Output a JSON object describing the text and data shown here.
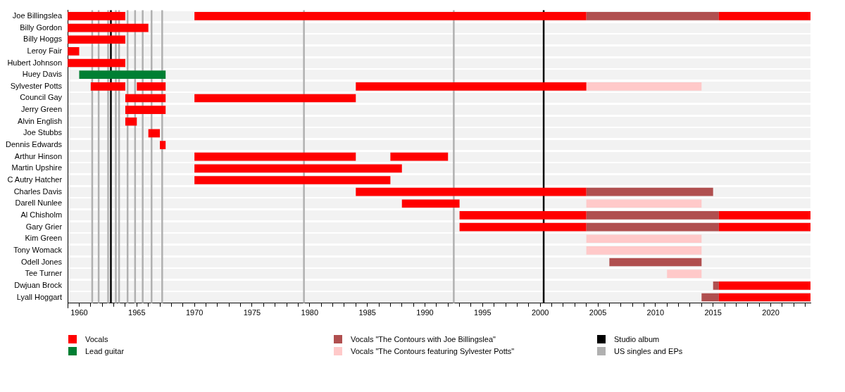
{
  "chart_data": {
    "type": "bar",
    "orientation": "horizontal",
    "grid": "y",
    "legend": "bottom",
    "categories": [
      "Joe Billingslea",
      "Billy Gordon",
      "Billy Hoggs",
      "Leroy Fair",
      "Hubert Johnson",
      "Huey Davis",
      "Sylvester Potts",
      "Council Gay",
      "Jerry Green",
      "Alvin English",
      "Joe Stubbs",
      "Dennis Edwards",
      "Arthur Hinson",
      "Martin Upshire",
      "C Autry Hatcher",
      "Charles Davis",
      "Darell Nunlee",
      "Al Chisholm",
      "Gary Grier",
      "Kim Green",
      "Tony Womack",
      "Odell Jones",
      "Tee Turner",
      "Dwjuan Brock",
      "Lyall Hoggart"
    ],
    "xlim": [
      1959,
      2023.45
    ],
    "xticks": [
      {
        "value": 1959,
        "label": null
      },
      1960,
      {
        "value": 1961,
        "label": null
      },
      {
        "value": 1962,
        "label": null
      },
      {
        "value": 1963,
        "label": null
      },
      {
        "value": 1964,
        "label": null
      },
      1965,
      {
        "value": 1966,
        "label": null
      },
      {
        "value": 1967,
        "label": null
      },
      {
        "value": 1968,
        "label": null
      },
      {
        "value": 1969,
        "label": null
      },
      1970,
      {
        "value": 1971,
        "label": null
      },
      {
        "value": 1972,
        "label": null
      },
      {
        "value": 1973,
        "label": null
      },
      {
        "value": 1974,
        "label": null
      },
      1975,
      {
        "value": 1976,
        "label": null
      },
      {
        "value": 1977,
        "label": null
      },
      {
        "value": 1978,
        "label": null
      },
      {
        "value": 1979,
        "label": null
      },
      1980,
      {
        "value": 1981,
        "label": null
      },
      {
        "value": 1982,
        "label": null
      },
      {
        "value": 1983,
        "label": null
      },
      {
        "value": 1984,
        "label": null
      },
      1985,
      {
        "value": 1986,
        "label": null
      },
      {
        "value": 1987,
        "label": null
      },
      {
        "value": 1988,
        "label": null
      },
      {
        "value": 1989,
        "label": null
      },
      1990,
      {
        "value": 1991,
        "label": null
      },
      {
        "value": 1992,
        "label": null
      },
      {
        "value": 1993,
        "label": null
      },
      {
        "value": 1994,
        "label": null
      },
      1995,
      {
        "value": 1996,
        "label": null
      },
      {
        "value": 1997,
        "label": null
      },
      {
        "value": 1998,
        "label": null
      },
      {
        "value": 1999,
        "label": null
      },
      2000,
      {
        "value": 2001,
        "label": null
      },
      {
        "value": 2002,
        "label": null
      },
      {
        "value": 2003,
        "label": null
      },
      {
        "value": 2004,
        "label": null
      },
      2005,
      {
        "value": 2006,
        "label": null
      },
      {
        "value": 2007,
        "label": null
      },
      {
        "value": 2008,
        "label": null
      },
      {
        "value": 2009,
        "label": null
      },
      2010,
      {
        "value": 2011,
        "label": null
      },
      {
        "value": 2012,
        "label": null
      },
      {
        "value": 2013,
        "label": null
      },
      {
        "value": 2014,
        "label": null
      },
      2015,
      {
        "value": 2016,
        "label": null
      },
      {
        "value": 2017,
        "label": null
      },
      {
        "value": 2018,
        "label": null
      },
      {
        "value": 2019,
        "label": null
      },
      2020,
      {
        "value": 2021,
        "label": null
      },
      {
        "value": 2022,
        "label": null
      },
      {
        "value": 2023,
        "label": null
      }
    ],
    "series": [
      {
        "name": "Vocals",
        "color": "#ff0000",
        "base": [
          1959,
          1959,
          1959,
          1959,
          1959,
          null,
          1961,
          1964,
          1964,
          1964,
          1966,
          1967,
          1970,
          1970,
          1970,
          1984,
          1988,
          1993,
          1993,
          null,
          null,
          null,
          null,
          2015.5,
          2015.5
        ],
        "values": [
          5,
          7,
          5,
          1,
          5,
          null,
          3,
          3.5,
          3.5,
          1,
          1,
          0.5,
          14,
          18,
          17,
          20,
          5,
          11,
          11,
          null,
          null,
          null,
          null,
          7.95,
          7.95
        ]
      },
      {
        "color": "#ff0000",
        "base": [
          1970,
          null,
          null,
          null,
          null,
          null,
          1965,
          1970,
          null,
          null,
          null,
          null,
          1987,
          null,
          null,
          null,
          null,
          2015.5,
          2015.5,
          null,
          null,
          null,
          null,
          null,
          null
        ],
        "values": [
          34,
          null,
          null,
          null,
          null,
          null,
          2.5,
          14,
          null,
          null,
          null,
          null,
          5,
          null,
          null,
          null,
          null,
          7.95,
          7.95,
          null,
          null,
          null,
          null,
          null,
          null
        ]
      },
      {
        "color": "#ff0000",
        "base": [
          2015.5,
          null,
          null,
          null,
          null,
          null,
          1984,
          null,
          null,
          null,
          null,
          null,
          null,
          null,
          null,
          null,
          null,
          null,
          null,
          null,
          null,
          null,
          null,
          null,
          null
        ],
        "values": [
          7.95,
          null,
          null,
          null,
          null,
          null,
          20,
          null,
          null,
          null,
          null,
          null,
          null,
          null,
          null,
          null,
          null,
          null,
          null,
          null,
          null,
          null,
          null,
          null,
          null
        ]
      },
      {
        "name": "Lead guitar",
        "color": "#007f33",
        "base": [
          null,
          null,
          null,
          null,
          null,
          1960,
          null,
          null,
          null,
          null,
          null,
          null,
          null,
          null,
          null,
          null,
          null,
          null,
          null,
          null,
          null,
          null,
          null,
          null,
          null
        ],
        "values": [
          null,
          null,
          null,
          null,
          null,
          7.5,
          null,
          null,
          null,
          null,
          null,
          null,
          null,
          null,
          null,
          null,
          null,
          null,
          null,
          null,
          null,
          null,
          null,
          null,
          null
        ]
      },
      {
        "name": "Vocals \"The Contours with Joe Billingslea\"",
        "color": "#b04f4f",
        "base": [
          2004,
          null,
          null,
          null,
          null,
          null,
          null,
          null,
          null,
          null,
          null,
          null,
          null,
          null,
          null,
          2004,
          null,
          2004,
          2004,
          null,
          null,
          2006,
          null,
          2015,
          2014
        ],
        "values": [
          11.5,
          null,
          null,
          null,
          null,
          null,
          null,
          null,
          null,
          null,
          null,
          null,
          null,
          null,
          null,
          11,
          null,
          11.5,
          11.5,
          null,
          null,
          8,
          null,
          0.5,
          1.5
        ]
      },
      {
        "name": "Vocals \"The Contours featuring Sylvester Potts\"",
        "color": "#ffc9c9",
        "base": [
          null,
          null,
          null,
          null,
          null,
          null,
          2004,
          null,
          null,
          null,
          null,
          null,
          null,
          null,
          null,
          null,
          2004,
          null,
          null,
          2004,
          2004,
          null,
          2011,
          null,
          null
        ],
        "values": [
          null,
          null,
          null,
          null,
          null,
          null,
          10,
          null,
          null,
          null,
          null,
          null,
          null,
          null,
          null,
          null,
          10,
          null,
          null,
          10,
          10,
          null,
          3,
          null,
          null
        ]
      }
    ],
    "ref_lines": [
      {
        "axis": "x",
        "value": 2000.3,
        "color": "#000000",
        "label": "Studio album"
      },
      {
        "axis": "x",
        "value": 1962.75,
        "color": "#000000"
      },
      {
        "axis": "x",
        "value": 1961.13,
        "color": "#b0b0b0",
        "label": "US singles and EPs"
      },
      {
        "axis": "x",
        "value": 1961.69,
        "color": "#b0b0b0"
      },
      {
        "axis": "x",
        "value": 1962.51,
        "color": "#b0b0b0"
      },
      {
        "axis": "x",
        "value": 1963.18,
        "color": "#b0b0b0"
      },
      {
        "axis": "x",
        "value": 1963.46,
        "color": "#b0b0b0"
      },
      {
        "axis": "x",
        "value": 1964.2,
        "color": "#b0b0b0"
      },
      {
        "axis": "x",
        "value": 1964.85,
        "color": "#b0b0b0"
      },
      {
        "axis": "x",
        "value": 1965.51,
        "color": "#b0b0b0"
      },
      {
        "axis": "x",
        "value": 1966.28,
        "color": "#b0b0b0"
      },
      {
        "axis": "x",
        "value": 1967.2,
        "color": "#b0b0b0"
      },
      {
        "axis": "x",
        "value": 1979.5,
        "color": "#b0b0b0"
      },
      {
        "axis": "x",
        "value": 1992.5,
        "color": "#b0b0b0"
      }
    ]
  }
}
